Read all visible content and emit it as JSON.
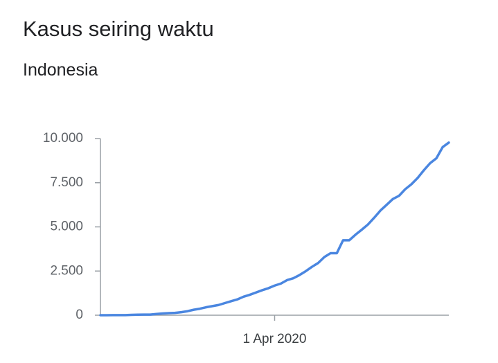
{
  "chart_data": {
    "type": "line",
    "title": "Kasus seiring waktu",
    "subtitle": "Indonesia",
    "categories": [
      null,
      null,
      null,
      null,
      null,
      null,
      null,
      null,
      null,
      null,
      null,
      null,
      null,
      null,
      null,
      null,
      null,
      null,
      null,
      null,
      null,
      null,
      null,
      null,
      null,
      null,
      null,
      null,
      "1 Apr 2020",
      null,
      null,
      null,
      null,
      null,
      null,
      null,
      null,
      null,
      null,
      null,
      null,
      null,
      null,
      null,
      null,
      null,
      null,
      null,
      null,
      null,
      null,
      null,
      null,
      null,
      null,
      null,
      null
    ],
    "series": [
      {
        "name": "Indonesia",
        "color": "#4a86e0",
        "values": [
          2,
          2,
          4,
          4,
          6,
          19,
          27,
          34,
          34,
          69,
          96,
          117,
          134,
          172,
          227,
          309,
          369,
          450,
          514,
          579,
          686,
          790,
          893,
          1046,
          1155,
          1285,
          1414,
          1528,
          1677,
          1790,
          1986,
          2092,
          2273,
          2491,
          2738,
          2956,
          3293,
          3512,
          3512,
          4241,
          4241,
          4557,
          4839,
          5136,
          5516,
          5923,
          6248,
          6575,
          6760,
          7135,
          7418,
          7775,
          8211,
          8607,
          8882,
          9511,
          9771
        ]
      }
    ],
    "ylim": [
      0,
      10000
    ],
    "yticks": [
      0,
      {
        "value": 2500,
        "label": "2.500"
      },
      {
        "value": 5000,
        "label": "5.000"
      },
      {
        "value": 7500,
        "label": "7.500"
      },
      {
        "value": 10000,
        "label": "10.000"
      }
    ],
    "grid": false
  }
}
